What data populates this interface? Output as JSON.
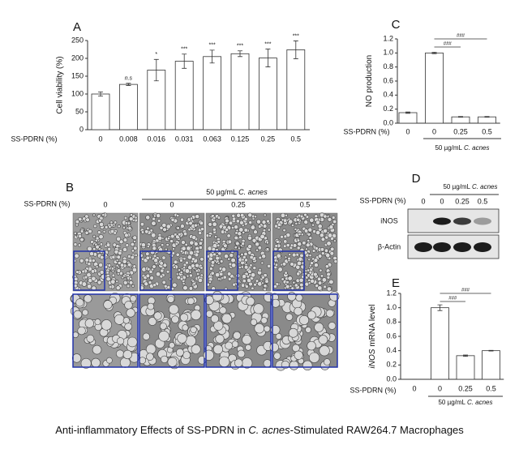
{
  "chart_data": [
    {
      "type": "bar",
      "panel": "A",
      "ylabel": "Cell viability (%)",
      "xlabel": "SS-PDRN (%)",
      "categories": [
        "0",
        "0.008",
        "0.016",
        "0.031",
        "0.063",
        "0.125",
        "0.25",
        "0.5"
      ],
      "values": [
        100,
        127,
        167,
        192,
        205,
        213,
        201,
        224
      ],
      "errors": [
        6,
        3,
        30,
        20,
        18,
        8,
        25,
        25
      ],
      "significance": [
        null,
        "n.s",
        "*",
        "***",
        "***",
        "***",
        "***",
        "***"
      ],
      "color": "#ffffff",
      "ylim": [
        0,
        250
      ],
      "yticks": [
        0,
        50,
        100,
        150,
        200,
        250
      ]
    },
    {
      "type": "bar",
      "panel": "C",
      "ylabel": [
        "NO production"
      ],
      "xlabel": "SS-PDRN (%)",
      "categories": [
        "0",
        "0",
        "0.25",
        "0.5"
      ],
      "group_label": [
        "50 µg/mL ",
        "C. acnes"
      ],
      "values": [
        0.15,
        1.0,
        0.09,
        0.09
      ],
      "errors": [
        0.01,
        0.01,
        0.005,
        0.005
      ],
      "annotations": [
        "###",
        "###"
      ],
      "color": "#ffffff",
      "ylim": [
        0,
        1.2
      ],
      "yticks": [
        {
          "value": 0,
          "label": "0.0"
        },
        0.2,
        0.4,
        0.6,
        0.8,
        {
          "value": 1,
          "label": "1.0"
        },
        1.2
      ]
    },
    {
      "type": "bar",
      "panel": "E",
      "ylabel": [
        "iNOS",
        " mRNA level"
      ],
      "xlabel": "SS-PDRN (%)",
      "categories": [
        "0",
        "0",
        "0.25",
        "0.5"
      ],
      "group_label": [
        "50 µg/mL ",
        "C. acnes"
      ],
      "values": [
        0,
        1.0,
        0.33,
        0.4
      ],
      "errors": [
        0,
        0.04,
        0.01,
        0.005
      ],
      "annotations": [
        "###",
        "###"
      ],
      "color": "#ffffff",
      "ylim": [
        0,
        1.2
      ],
      "yticks": [
        {
          "value": 0,
          "label": "0.0"
        },
        0.2,
        0.4,
        0.6,
        0.8,
        {
          "value": 1,
          "label": "1.0"
        },
        1.2
      ]
    }
  ],
  "panel_b": {
    "label": "B",
    "xlabel": "SS-PDRN (%)",
    "group_label": [
      "50 µg/mL ",
      "C. acnes"
    ],
    "columns": [
      "0",
      "0",
      "0.25",
      "0.5"
    ]
  },
  "panel_d": {
    "label": "D",
    "group_label": [
      "50 µg/mL ",
      "C. acnes"
    ],
    "xlabel": "SS-PDRN (%)",
    "columns": [
      "0",
      "0",
      "0.25",
      "0.5"
    ],
    "rows": [
      "iNOS",
      "β-Actin"
    ]
  },
  "caption": [
    "Anti-inflammatory Effects of SS-PDRN in ",
    "C. acnes",
    "-Stimulated RAW264.7 Macrophages"
  ]
}
